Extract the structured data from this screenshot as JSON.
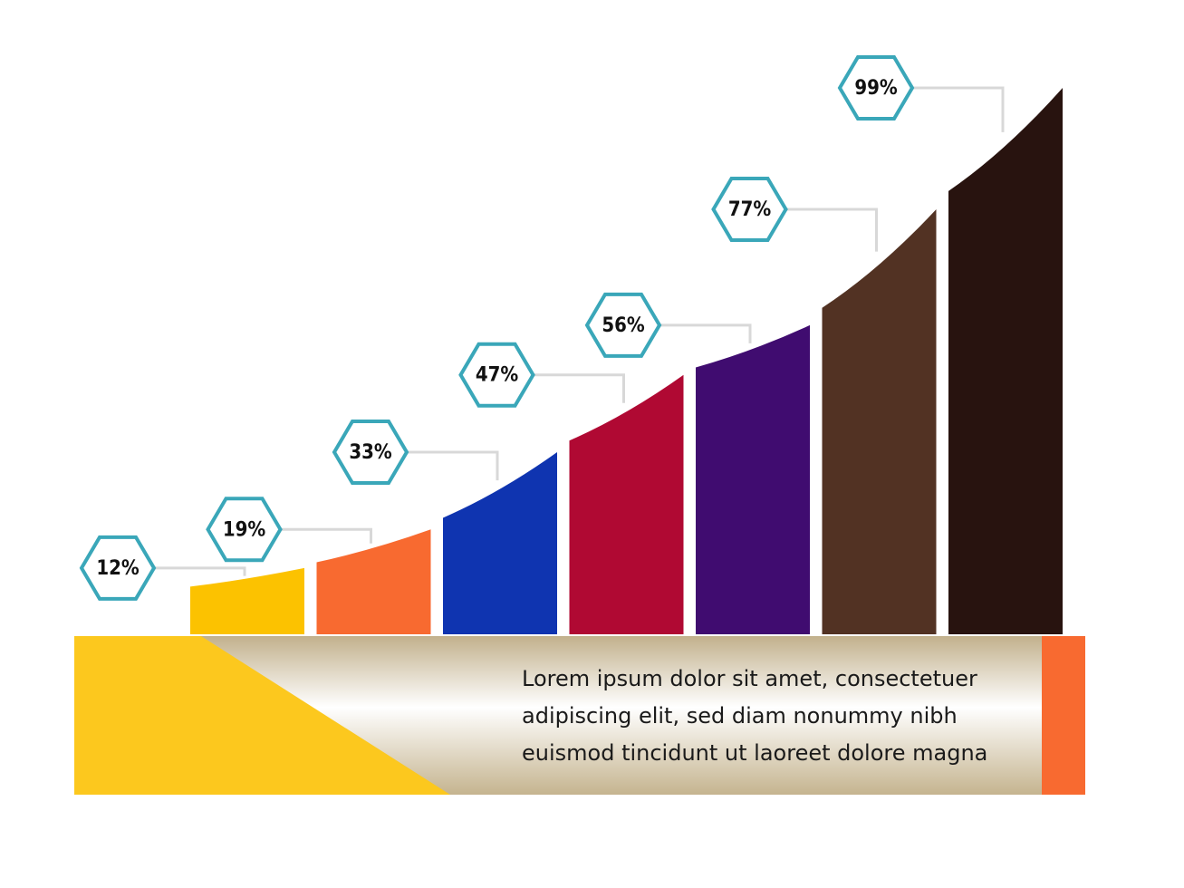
{
  "chart_data": {
    "type": "bar",
    "categories": [
      null,
      null,
      null,
      null,
      null,
      null,
      null
    ],
    "values": [
      12,
      19,
      33,
      47,
      56,
      77,
      99
    ],
    "value_labels": [
      "12%",
      "19%",
      "33%",
      "47%",
      "56%",
      "77%",
      "99%"
    ],
    "colors": [
      "#fcc200",
      "#f86a30",
      "#0f34b0",
      "#b00933",
      "#400c70",
      "#523223",
      "#28130f"
    ],
    "text_lines": [
      "Lorem ipsum dolor sit amet, consectetuer",
      "adipiscing elit, sed diam nonummy nibh",
      "euismod tincidunt ut laoreet dolore magna"
    ]
  }
}
